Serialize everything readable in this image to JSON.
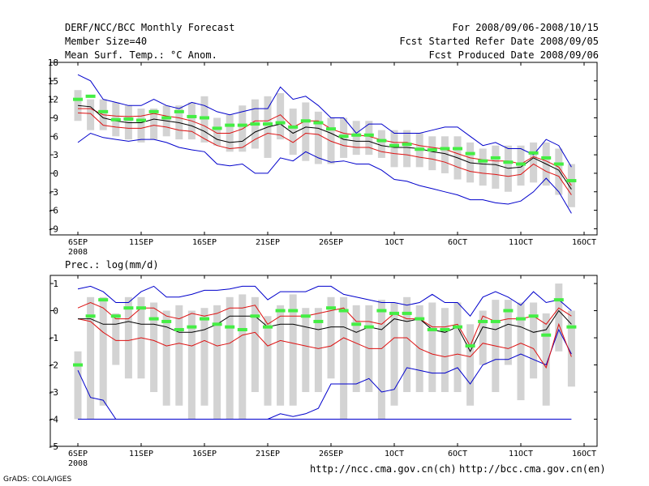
{
  "header": {
    "title": "DERF/NCC/BCC Monthly Forecast",
    "member_size": "Member Size=40",
    "variable": "Mean Surf. Temp.: °C Anom.",
    "period": "For 2008/09/06-2008/10/15",
    "fcst_started": "Fcst Started Refer Date 2008/09/05",
    "fcst_produced": "Fcst Produced Date 2008/09/06"
  },
  "footer": {
    "url_ch": "http://ncc.cma.gov.cn(ch)",
    "url_en": "http://bcc.cma.gov.cn(en)",
    "credit": "GrADS: COLA/IGES"
  },
  "colors": {
    "max_line": "#0000cc",
    "min_line": "#0000cc",
    "spread_line": "#dd1111",
    "ensemble_mean": "#000000",
    "median_marker": "#44ee44",
    "box": "#d3d3d3",
    "frame": "#000000"
  },
  "chart_data": [
    {
      "type": "box",
      "title": "Mean Surf. Temp.: °C Anom.",
      "xlabel": "",
      "ylabel": "",
      "ylim": [
        -10,
        18
      ],
      "yticks": [
        -9,
        -6,
        -3,
        0,
        3,
        6,
        9,
        12,
        15,
        18
      ],
      "xtick_labels": [
        "6SEP",
        "11SEP",
        "16SEP",
        "21SEP",
        "26SEP",
        "1OCT",
        "6OCT",
        "11OCT",
        "16OCT"
      ],
      "xtick_days": [
        0,
        5,
        10,
        15,
        20,
        25,
        30,
        35,
        40
      ],
      "x_sublabel": "2008",
      "days": [
        0,
        1,
        2,
        3,
        4,
        5,
        6,
        7,
        8,
        9,
        10,
        11,
        12,
        13,
        14,
        15,
        16,
        17,
        18,
        19,
        20,
        21,
        22,
        23,
        24,
        25,
        26,
        27,
        28,
        29,
        30,
        31,
        32,
        33,
        34,
        35,
        36,
        37,
        38,
        39
      ],
      "series": [
        {
          "name": "max",
          "values": [
            16,
            15,
            12,
            11.5,
            11,
            11,
            12,
            11,
            10.5,
            11.5,
            11,
            10,
            9.5,
            10,
            10.5,
            10.5,
            14,
            12,
            12.5,
            11,
            9,
            9,
            6.5,
            8,
            8,
            6.5,
            6.5,
            6.5,
            7,
            7.5,
            7.5,
            6,
            4.5,
            5,
            4,
            4,
            3,
            5.5,
            4.5,
            1
          ]
        },
        {
          "name": "upper",
          "values": [
            10.5,
            10.5,
            9.5,
            9.3,
            9.2,
            9.3,
            9.7,
            9.3,
            9,
            8.5,
            7.7,
            6.5,
            6.5,
            7.2,
            8.5,
            8.5,
            9.5,
            7.5,
            8.5,
            8.5,
            7.2,
            6.5,
            6.2,
            6,
            5.4,
            5,
            5,
            4.5,
            4.2,
            3.9,
            3.2,
            2.5,
            2.2,
            2,
            2,
            1.5,
            2.7,
            2,
            1,
            -2
          ]
        },
        {
          "name": "mean",
          "values": [
            11,
            10.8,
            9,
            8.5,
            8.2,
            8.2,
            8.8,
            8.5,
            8.2,
            7.7,
            6.8,
            5.5,
            5,
            5.2,
            6.7,
            7.5,
            8,
            6.5,
            7.5,
            7.3,
            6.5,
            5.5,
            5.2,
            5.2,
            4.5,
            4.2,
            4.2,
            4,
            3.5,
            3.2,
            2.5,
            1.7,
            1.5,
            1.4,
            0.8,
            1,
            2.5,
            1.5,
            0.5,
            -2.6
          ]
        },
        {
          "name": "lower",
          "values": [
            9.8,
            9.7,
            7.8,
            7.5,
            7.3,
            7.3,
            7.8,
            7.5,
            7,
            6.8,
            5.6,
            4.5,
            4,
            4.2,
            5.5,
            6.5,
            6.2,
            5,
            6.5,
            6.3,
            5.2,
            4.5,
            4.2,
            4.2,
            3.5,
            3.2,
            3,
            2.6,
            2.3,
            1.8,
            1,
            0.3,
            0,
            -0.2,
            -0.5,
            -0.2,
            1.5,
            0.3,
            -0.5,
            -3.5
          ]
        },
        {
          "name": "min",
          "values": [
            5,
            6.5,
            5.8,
            5.5,
            5.2,
            5.5,
            5.5,
            5,
            4.2,
            3.8,
            3.5,
            1.5,
            1.2,
            1.5,
            0,
            0,
            2.5,
            2,
            3.5,
            2.5,
            1.8,
            2,
            1.5,
            1.5,
            0.5,
            -1,
            -1.3,
            -2,
            -2.5,
            -3,
            -3.5,
            -4.3,
            -4.3,
            -4.8,
            -5,
            -4.5,
            -3,
            -0.8,
            -3,
            -6.5
          ]
        },
        {
          "name": "median",
          "values": [
            12,
            12.5,
            10,
            8.7,
            8.8,
            8.6,
            10,
            9,
            10,
            9.2,
            9,
            7.3,
            7.8,
            7.8,
            8,
            8,
            8.2,
            7.5,
            8.5,
            8.2,
            7.2,
            6,
            6.2,
            6.2,
            5.3,
            4.5,
            4.7,
            3.9,
            3.8,
            4,
            4,
            3.2,
            2,
            2.5,
            1.8,
            1.5,
            3.3,
            2.5,
            1.5,
            -1.2
          ]
        },
        {
          "name": "box_high",
          "values": [
            13.5,
            12,
            12,
            11.5,
            11,
            10.5,
            10.5,
            11,
            11,
            11.5,
            12.5,
            9,
            9.5,
            11,
            12,
            12.5,
            13,
            10.5,
            11.5,
            10,
            9,
            9,
            8.5,
            8.5,
            7,
            7,
            7,
            6.5,
            6,
            6,
            6,
            5,
            4,
            4.5,
            4.5,
            4.5,
            5,
            5,
            4,
            1.5
          ]
        },
        {
          "name": "box_low",
          "values": [
            8.5,
            7,
            7,
            6,
            5.5,
            5,
            5.5,
            6,
            5.5,
            5.5,
            5,
            4.5,
            3.5,
            3.5,
            4,
            2.5,
            5.5,
            3,
            2,
            1.5,
            1.5,
            2.5,
            3,
            3,
            2.5,
            1,
            1,
            1,
            0.5,
            0,
            -1,
            -1.5,
            -2,
            -2.5,
            -3,
            -2,
            -1.5,
            -2,
            -3.5,
            -5.5
          ]
        }
      ]
    },
    {
      "type": "box",
      "title": "Prec.: log(mm/d)",
      "xlabel": "",
      "ylabel": "",
      "ylim": [
        -5,
        1.3
      ],
      "yticks": [
        -5,
        -4,
        -3,
        -2,
        -1,
        0,
        1
      ],
      "xtick_labels": [
        "6SEP",
        "11SEP",
        "16SEP",
        "21SEP",
        "26SEP",
        "1OCT",
        "6OCT",
        "11OCT",
        "16OCT"
      ],
      "xtick_days": [
        0,
        5,
        10,
        15,
        20,
        25,
        30,
        35,
        40
      ],
      "x_sublabel": "2008",
      "days": [
        0,
        1,
        2,
        3,
        4,
        5,
        6,
        7,
        8,
        9,
        10,
        11,
        12,
        13,
        14,
        15,
        16,
        17,
        18,
        19,
        20,
        21,
        22,
        23,
        24,
        25,
        26,
        27,
        28,
        29,
        30,
        31,
        32,
        33,
        34,
        35,
        36,
        37,
        38,
        39
      ],
      "series": [
        {
          "name": "max",
          "values": [
            0.8,
            0.9,
            0.7,
            0.3,
            0.3,
            0.7,
            0.9,
            0.5,
            0.5,
            0.6,
            0.75,
            0.75,
            0.8,
            0.9,
            0.9,
            0.4,
            0.7,
            0.7,
            0.7,
            0.9,
            0.9,
            0.6,
            0.5,
            0.4,
            0.3,
            0.3,
            0.2,
            0.3,
            0.6,
            0.3,
            0.3,
            -0.2,
            0.5,
            0.7,
            0.5,
            0.2,
            0.7,
            0.3,
            0.4,
            0
          ]
        },
        {
          "name": "upper",
          "values": [
            0.1,
            0.3,
            0.1,
            -0.3,
            -0.3,
            0.1,
            0.1,
            -0.2,
            -0.3,
            -0.1,
            -0.2,
            -0.1,
            0.1,
            0.1,
            0.2,
            -0.5,
            -0.2,
            -0.2,
            -0.2,
            -0.1,
            0,
            0.1,
            -0.4,
            -0.4,
            -0.5,
            -0.1,
            -0.3,
            -0.3,
            -0.6,
            -0.6,
            -0.5,
            -1.3,
            -0.2,
            -0.4,
            -0.3,
            -0.3,
            -0.2,
            -0.5,
            0.1,
            -0.2
          ]
        },
        {
          "name": "mean",
          "values": [
            -0.3,
            -0.3,
            -0.5,
            -0.5,
            -0.4,
            -0.5,
            -0.5,
            -0.6,
            -0.8,
            -0.8,
            -0.7,
            -0.5,
            -0.2,
            -0.2,
            -0.2,
            -0.6,
            -0.5,
            -0.5,
            -0.6,
            -0.7,
            -0.6,
            -0.6,
            -0.8,
            -0.6,
            -0.7,
            -0.3,
            -0.4,
            -0.3,
            -0.7,
            -0.8,
            -0.6,
            -1.5,
            -0.6,
            -0.7,
            -0.5,
            -0.6,
            -0.8,
            -0.7,
            0,
            -0.5
          ]
        },
        {
          "name": "lower",
          "values": [
            -0.3,
            -0.4,
            -0.8,
            -1.1,
            -1.1,
            -1,
            -1.1,
            -1.3,
            -1.2,
            -1.3,
            -1.1,
            -1.3,
            -1.2,
            -0.9,
            -0.8,
            -1.3,
            -1.1,
            -1.2,
            -1.3,
            -1.4,
            -1.3,
            -1,
            -1.2,
            -1.4,
            -1.4,
            -1,
            -1,
            -1.4,
            -1.6,
            -1.7,
            -1.6,
            -1.7,
            -1.2,
            -1.3,
            -1.4,
            -1.2,
            -1.4,
            -2.1,
            -0.5,
            -1.7
          ]
        },
        {
          "name": "min",
          "values": [
            -2.2,
            -3.2,
            -3.3,
            -4,
            -4,
            -4,
            -4,
            -4,
            -4,
            -4,
            -4,
            -4,
            -4,
            -4,
            -4,
            -4,
            -3.8,
            -3.9,
            -3.8,
            -3.6,
            -2.7,
            -2.7,
            -2.7,
            -2.5,
            -3,
            -2.9,
            -2.1,
            -2.2,
            -2.3,
            -2.3,
            -2.1,
            -2.7,
            -2,
            -1.8,
            -1.8,
            -1.6,
            -1.8,
            -2,
            -0.7,
            -1.6
          ]
        },
        {
          "name": "median",
          "values": [
            -2,
            -0.2,
            0.4,
            -0.2,
            0.1,
            0.1,
            -0.3,
            -0.4,
            -0.7,
            -0.6,
            -0.3,
            -0.5,
            -0.6,
            -0.7,
            -0.2,
            -0.6,
            0,
            0,
            -0.2,
            -0.4,
            0.1,
            0,
            -0.5,
            -0.6,
            0,
            -0.1,
            -0.1,
            -0.3,
            -0.7,
            -0.7,
            -0.6,
            -1.3,
            -0.4,
            -0.4,
            0,
            -0.3,
            -0.2,
            -0.9,
            0.4,
            -0.6
          ]
        },
        {
          "name": "box_high",
          "values": [
            -1.5,
            0.5,
            0.5,
            -0.1,
            0.5,
            0.5,
            0.3,
            0,
            0.2,
            0,
            0.1,
            0.2,
            0.5,
            0.6,
            0.5,
            -0.2,
            0.2,
            0.6,
            0.1,
            0.1,
            0.5,
            0.5,
            0.2,
            0.2,
            0.4,
            0.3,
            0.5,
            0.2,
            0.3,
            0.1,
            0.3,
            -0.5,
            0,
            0.4,
            0.4,
            0.3,
            0.3,
            -0.1,
            1,
            0
          ]
        },
        {
          "name": "box_low",
          "values": [
            -4,
            -4,
            -3.5,
            -2,
            -2.5,
            -2.5,
            -3,
            -3.5,
            -3.5,
            -4,
            -3.5,
            -4,
            -4,
            -4,
            -3,
            -3.5,
            -3.5,
            -3.5,
            -3,
            -3,
            -2.5,
            -4,
            -3,
            -3,
            -4,
            -3.5,
            -3,
            -3,
            -3,
            -3,
            -3,
            -3.5,
            -2,
            -3,
            -2,
            -3.3,
            -2.5,
            -3.5,
            -1.5,
            -2.8
          ]
        }
      ],
      "floor_line": -4
    }
  ]
}
